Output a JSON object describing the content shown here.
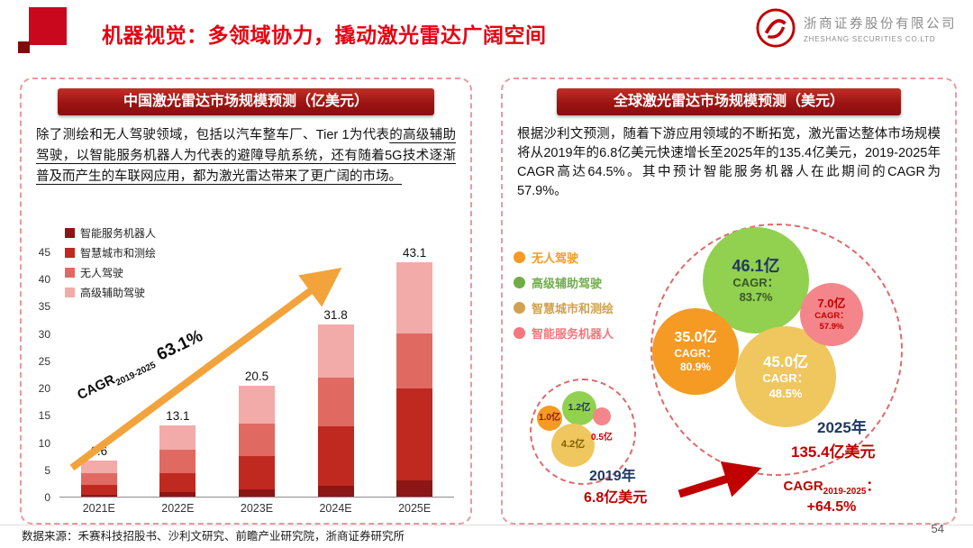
{
  "header": {
    "title": "机器视觉：多领域协力，撬动激光雷达广阔空间",
    "company_cn": "浙商证券股份有限公司",
    "company_en": "ZHESHANG SECURITIES CO.LTD"
  },
  "theme": {
    "title_red": "#E60012",
    "banner_red": "#9C1412",
    "dashed_border": "#E89B9B",
    "arrow_orange": "#F2A33C",
    "highlight_red": "#C00000",
    "dark_blue": "#1F3864"
  },
  "left_panel": {
    "banner": "中国激光雷达市场规模预测（亿美元）",
    "paragraph_start": "除了测绘和无人驾驶领域，包括以汽车整车厂、Tier 1为代表",
    "paragraph_underlined": "的高级辅助驾驶，以智能服务机器人为代表的避障导航系统，还有随着5G技术逐渐普及而产生的车联网应用，都为激光雷达带来了更广阔的市场。",
    "cagr_prefix": "CAGR",
    "cagr_subscript": "2019-2025",
    "cagr_value": "63.1%"
  },
  "right_panel": {
    "banner": "全球激光雷达市场规模预测（美元）",
    "paragraph": "根据沙利文预测，随着下游应用领域的不断拓宽，激光雷达整体市场规模将从2019年的6.8亿美元快速增长至2025年的135.4亿美元，2019-2025年CAGR高达64.5%。其中预计智能服务机器人在此期间的CAGR为57.9%。",
    "cagr_prefix": "CAGR",
    "cagr_subscript": "2019-2025",
    "cagr_colon": "：",
    "cagr_value": "+64.5%"
  },
  "footer": {
    "source": "数据来源：禾赛科技招股书、沙利文研究、前瞻产业研究院，浙商证券研究所",
    "page_number": "54"
  },
  "chart_data": [
    {
      "type": "bar",
      "title": "中国激光雷达市场规模预测（亿美元）",
      "stacked": true,
      "grid": false,
      "legend_position": "top-left",
      "categories": [
        "2021E",
        "2022E",
        "2023E",
        "2024E",
        "2025E"
      ],
      "totals": [
        6.6,
        13.1,
        20.5,
        31.8,
        43.1
      ],
      "series": [
        {
          "name": "智能服务机器人",
          "color": "#8C1515",
          "values": [
            0.4,
            0.8,
            1.3,
            2.0,
            3.0
          ]
        },
        {
          "name": "智慧城市和测绘",
          "color": "#BF2920",
          "values": [
            1.8,
            3.6,
            6.2,
            11.0,
            17.0
          ]
        },
        {
          "name": "无人驾驶",
          "color": "#E06A62",
          "values": [
            2.2,
            4.2,
            6.0,
            9.0,
            10.0
          ]
        },
        {
          "name": "高级辅助驾驶",
          "color": "#F2ABA8",
          "values": [
            2.2,
            4.5,
            7.0,
            9.8,
            13.1
          ]
        }
      ],
      "ylim": [
        0,
        45
      ],
      "yticks": [
        0,
        5,
        10,
        15,
        20,
        25,
        30,
        35,
        40,
        45
      ],
      "annotation": "CAGR2019-2025 63.1%"
    },
    {
      "type": "bubble",
      "title": "全球激光雷达市场规模预测（美元）",
      "legend": [
        {
          "label": "无人驾驶",
          "color": "#F59A23"
        },
        {
          "label": "高级辅助驾驶",
          "color": "#70AD47"
        },
        {
          "label": "智慧城市和测绘",
          "color": "#D0A24F"
        },
        {
          "label": "智能服务机器人",
          "color": "#F4777C"
        }
      ],
      "groups": [
        {
          "year": "2019年",
          "total_label": "6.8亿美元",
          "bubbles": [
            {
              "category": "无人驾驶",
              "label": "1.0亿",
              "value": 1.0
            },
            {
              "category": "高级辅助驾驶",
              "label": "1.2亿",
              "value": 1.2
            },
            {
              "category": "智慧城市和测绘",
              "label": "4.2亿",
              "value": 4.2
            },
            {
              "category": "智能服务机器人",
              "label": "0.5亿",
              "value": 0.5
            }
          ]
        },
        {
          "year": "2025年",
          "total_label": "135.4亿美元",
          "bubbles": [
            {
              "category": "无人驾驶",
              "label": "35.0亿",
              "value": 35.0,
              "cagr_label": "CAGR：",
              "cagr_value": "80.9%"
            },
            {
              "category": "高级辅助驾驶",
              "label": "46.1亿",
              "value": 46.1,
              "cagr_label": "CAGR：",
              "cagr_value": "83.7%"
            },
            {
              "category": "智慧城市和测绘",
              "label": "45.0亿",
              "value": 45.0,
              "cagr_label": "CAGR：",
              "cagr_value": "48.5%"
            },
            {
              "category": "智能服务机器人",
              "label": "7.0亿",
              "value": 7.0,
              "cagr_label": "CAGR：",
              "cagr_value": "57.9%"
            }
          ]
        }
      ],
      "overall_cagr": "CAGR2019-2025：+64.5%"
    }
  ]
}
